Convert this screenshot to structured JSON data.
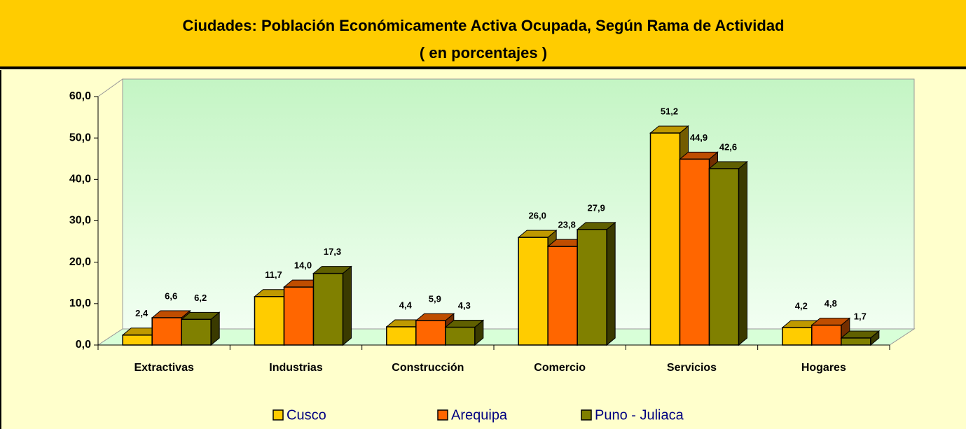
{
  "chart_data": {
    "type": "bar3d",
    "title": "Ciudades: Población Económicamente Activa Ocupada, Según Rama de Actividad",
    "subtitle": "( en porcentajes )",
    "categories": [
      "Extractivas",
      "Industrias",
      "Construcción",
      "Comercio",
      "Servicios",
      "Hogares"
    ],
    "series": [
      {
        "name": "Cusco",
        "color": "#ffcc00",
        "values": [
          2.4,
          11.7,
          4.4,
          26.0,
          51.2,
          4.2
        ],
        "value_labels": [
          "2,4",
          "11,7",
          "4,4",
          "26,0",
          "51,2",
          "4,2"
        ]
      },
      {
        "name": "Arequipa",
        "color": "#ff6600",
        "values": [
          6.6,
          14.0,
          5.9,
          23.8,
          44.9,
          4.8
        ],
        "value_labels": [
          "6,6",
          "14,0",
          "5,9",
          "23,8",
          "44,9",
          "4,8"
        ]
      },
      {
        "name": "Puno - Juliaca",
        "color": "#808000",
        "values": [
          6.2,
          17.3,
          4.3,
          27.9,
          42.6,
          1.7
        ],
        "value_labels": [
          "6,2",
          "17,3",
          "4,3",
          "27,9",
          "42,6",
          "1,7"
        ]
      }
    ],
    "ylim": [
      0,
      60
    ],
    "yticks": [
      {
        "value": 0,
        "label": "0,0"
      },
      {
        "value": 10,
        "label": "10,0"
      },
      {
        "value": 20,
        "label": "20,0"
      },
      {
        "value": 30,
        "label": "30,0"
      },
      {
        "value": 40,
        "label": "40,0"
      },
      {
        "value": 50,
        "label": "50,0"
      },
      {
        "value": 60,
        "label": "60,0"
      }
    ],
    "grid": false
  }
}
